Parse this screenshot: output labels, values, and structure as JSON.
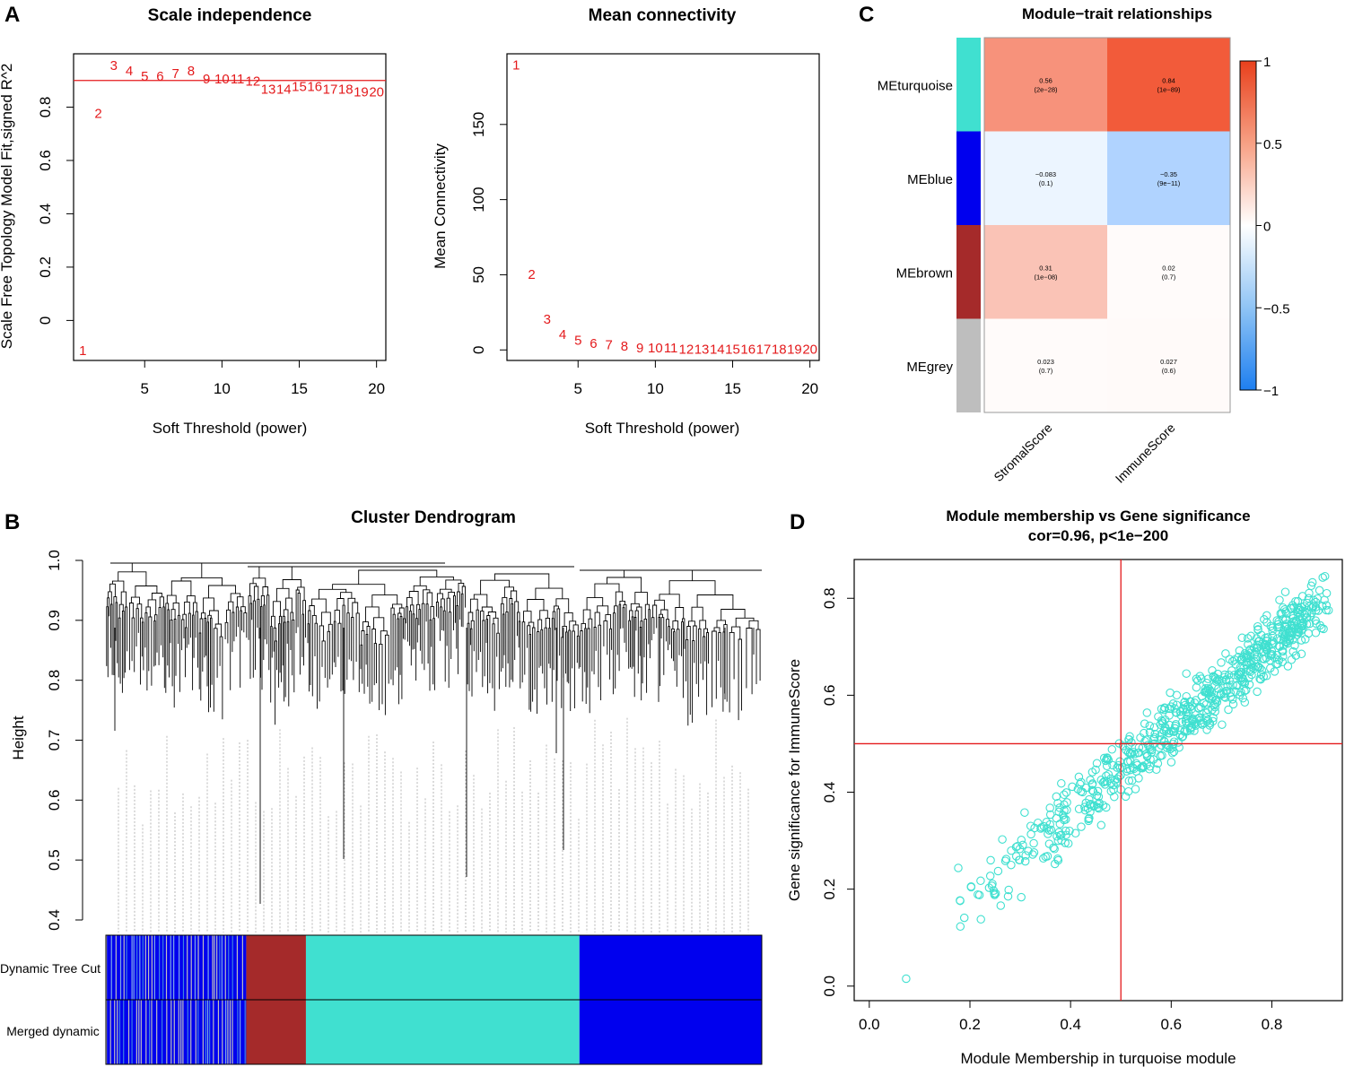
{
  "panel_letters": [
    "A",
    "B",
    "C",
    "D"
  ],
  "colors": {
    "red": "#e41a1c",
    "turquoise": "#40e0d0",
    "blue": "#0000ee",
    "brown": "#a52a2a",
    "grey": "#bebebe",
    "lightblue": "#3f7fe0"
  },
  "chart_data": [
    {
      "id": "scale_independence",
      "type": "scatter",
      "marker": "text-label",
      "title": "Scale independence",
      "xlabel": "Soft Threshold (power)",
      "ylabel": "Scale Free Topology Model Fit,signed R^2",
      "xlim": [
        0.4,
        20.6
      ],
      "ylim": [
        -0.15,
        1.0
      ],
      "xticks": [
        5,
        10,
        15,
        20
      ],
      "yticks": [
        0.0,
        0.2,
        0.4,
        0.6,
        0.8
      ],
      "hline": 0.9,
      "x": [
        1,
        2,
        3,
        4,
        5,
        6,
        7,
        8,
        9,
        10,
        11,
        12,
        13,
        14,
        15,
        16,
        17,
        18,
        19,
        20
      ],
      "y": [
        -0.11,
        0.78,
        0.96,
        0.94,
        0.92,
        0.92,
        0.93,
        0.94,
        0.91,
        0.91,
        0.91,
        0.9,
        0.87,
        0.87,
        0.88,
        0.88,
        0.87,
        0.87,
        0.86,
        0.86
      ],
      "labels": [
        "1",
        "2",
        "3",
        "4",
        "5",
        "6",
        "7",
        "8",
        "9",
        "10",
        "11",
        "12",
        "13",
        "14",
        "15",
        "16",
        "17",
        "18",
        "19",
        "20"
      ]
    },
    {
      "id": "mean_connectivity",
      "type": "scatter",
      "marker": "text-label",
      "title": "Mean connectivity",
      "xlabel": "Soft Threshold (power)",
      "ylabel": "Mean Connectivity",
      "xlim": [
        0.4,
        20.6
      ],
      "ylim": [
        -7,
        197
      ],
      "xticks": [
        5,
        10,
        15,
        20
      ],
      "yticks": [
        0,
        50,
        100,
        150
      ],
      "x": [
        1,
        2,
        3,
        4,
        5,
        6,
        7,
        8,
        9,
        10,
        11,
        12,
        13,
        14,
        15,
        16,
        17,
        18,
        19,
        20
      ],
      "y": [
        190,
        51,
        21,
        11,
        7,
        5,
        4,
        3,
        2,
        2,
        2,
        1,
        1,
        1,
        1,
        1,
        1,
        1,
        1,
        1
      ],
      "labels": [
        "1",
        "2",
        "3",
        "4",
        "5",
        "6",
        "7",
        "8",
        "9",
        "10",
        "11",
        "12",
        "13",
        "14",
        "15",
        "16",
        "17",
        "18",
        "19",
        "20"
      ]
    },
    {
      "id": "module_trait",
      "type": "heatmap",
      "title": "Module−trait relationships",
      "rows": [
        "MEturquoise",
        "MEblue",
        "MEbrown",
        "MEgrey"
      ],
      "row_colors": [
        "#40e0d0",
        "#0000ee",
        "#a52a2a",
        "#bebebe"
      ],
      "columns": [
        "StromalScore",
        "ImmuneScore"
      ],
      "values": [
        [
          0.56,
          0.84
        ],
        [
          -0.083,
          -0.35
        ],
        [
          0.31,
          0.02
        ],
        [
          0.023,
          0.027
        ]
      ],
      "cell_text": [
        [
          "0.56",
          "0.84"
        ],
        [
          "−0.083",
          "−0.35"
        ],
        [
          "0.31",
          "0.02"
        ],
        [
          "0.023",
          "0.027"
        ]
      ],
      "cell_pvalues": [
        [
          "(2e−28)",
          "(1e−89)"
        ],
        [
          "(0.1)",
          "(9e−11)"
        ],
        [
          "(1e−08)",
          "(0.7)"
        ],
        [
          "(0.7)",
          "(0.6)"
        ]
      ],
      "colorbar": {
        "range": [
          -1,
          1
        ],
        "ticks": [
          1,
          0.5,
          0,
          -0.5,
          -1
        ],
        "tick_labels": [
          "1",
          "0.5",
          "0",
          "−0.5",
          "−1"
        ]
      }
    },
    {
      "id": "cluster_dendrogram",
      "type": "dendrogram",
      "title": "Cluster Dendrogram",
      "ylabel": "Height",
      "ylim": [
        0.4,
        1.0
      ],
      "yticks": [
        0.4,
        0.5,
        0.6,
        0.7,
        0.8,
        0.9,
        1.0
      ],
      "color_rows": [
        "Dynamic Tree Cut",
        "Merged dynamic"
      ],
      "module_segments": [
        {
          "module": "mixed blue/grey",
          "start": 0.0,
          "end": 0.214
        },
        {
          "module": "brown",
          "start": 0.214,
          "end": 0.305
        },
        {
          "module": "turquoise",
          "start": 0.305,
          "end": 0.722
        },
        {
          "module": "blue",
          "start": 0.722,
          "end": 1.0
        }
      ]
    },
    {
      "id": "mm_vs_gs",
      "type": "scatter",
      "title": "Module membership vs Gene significance",
      "subtitle": "cor=0.96, p<1e−200",
      "xlabel": "Module Membership in turquoise module",
      "ylabel": "Gene significance for  ImmuneScore",
      "xlim": [
        -0.03,
        0.94
      ],
      "ylim": [
        -0.03,
        0.88
      ],
      "xticks": [
        0.0,
        0.2,
        0.4,
        0.6,
        0.8
      ],
      "yticks": [
        0.0,
        0.2,
        0.4,
        0.6,
        0.8
      ],
      "vline": 0.5,
      "hline": 0.5,
      "n_points": 700,
      "trend": {
        "slope": 0.88,
        "intercept": 0.0,
        "spread": 0.07
      },
      "x_range": [
        0.0,
        0.92
      ],
      "y_range": [
        0.0,
        0.86
      ]
    }
  ]
}
